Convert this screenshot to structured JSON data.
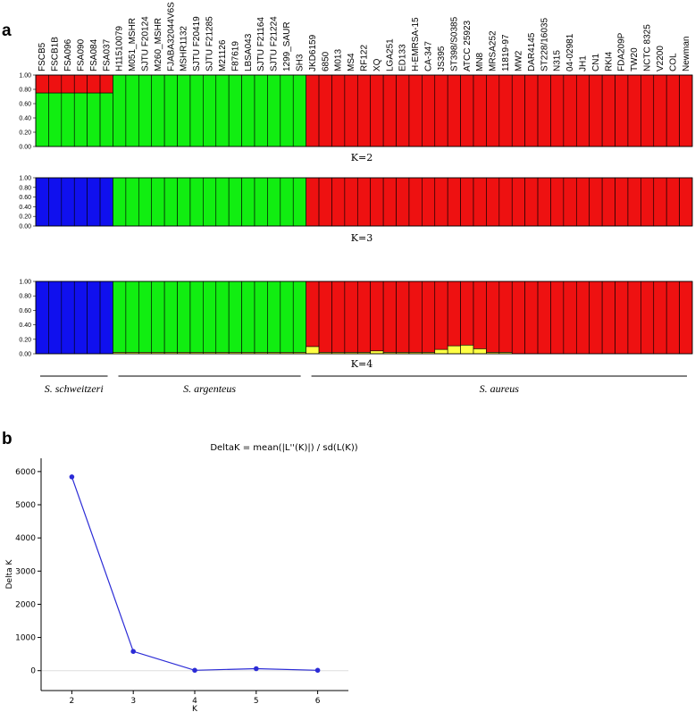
{
  "panel_a_label": "a",
  "panel_b_label": "b",
  "samples": [
    "FSCB5",
    "FSCB1B",
    "FSA096",
    "FSA090",
    "FSA084",
    "FSA037",
    "H11510079",
    "M051_MSHR",
    "SJTU F20124",
    "M260_MSHR",
    "FJABA32044V6S",
    "MSHR1132",
    "SJTU F20419",
    "SJTU F21285",
    "M21126",
    "F87619",
    "LBSA043",
    "SJTU F21164",
    "SJTU F21224",
    "1299_SAUR",
    "SH3",
    "JKD6159",
    "6850",
    "M013",
    "MS4",
    "RF122",
    "XQ",
    "LGA251",
    "ED133",
    "H-EMRSA-15",
    "CA-347",
    "JS395",
    "ST398/S0385",
    "ATCC 25923",
    "MN8",
    "MRSA252",
    "11819-97",
    "MW2",
    "DAR4145",
    "ST228/16035",
    "N315",
    "04-02981",
    "JH1",
    "CN1",
    "RKI4",
    "FDA209P",
    "TW20",
    "NCTC 8325",
    "V2200",
    "COL",
    "Newman"
  ],
  "structure": {
    "colors": {
      "blue": "#1010ee",
      "green": "#11ee11",
      "red": "#ee1111",
      "yellow": "#ffff44"
    },
    "y_ticks": [
      "0.00",
      "0.20",
      "0.40",
      "0.60",
      "0.80",
      "1.00"
    ],
    "panels": [
      {
        "k_label": "K=2",
        "groups": [
          {
            "count": 6,
            "stack": [
              [
                "green",
                0.75
              ],
              [
                "red",
                0.25
              ]
            ]
          },
          {
            "count": 15,
            "stack": [
              [
                "green",
                1.0
              ]
            ]
          },
          {
            "count": 30,
            "stack": [
              [
                "red",
                1.0
              ]
            ]
          }
        ]
      },
      {
        "k_label": "K=3",
        "groups": [
          {
            "count": 6,
            "stack": [
              [
                "blue",
                1.0
              ]
            ]
          },
          {
            "count": 15,
            "stack": [
              [
                "green",
                1.0
              ]
            ]
          },
          {
            "count": 30,
            "stack": [
              [
                "red",
                1.0
              ]
            ]
          }
        ]
      },
      {
        "k_label": "K=4",
        "groups": [
          {
            "count": 6,
            "stack": [
              [
                "blue",
                1.0
              ]
            ]
          },
          {
            "count": 15,
            "stack": [
              [
                "yellow",
                0.02
              ],
              [
                "green",
                0.98
              ]
            ]
          },
          {
            "count": 30,
            "stack": [
              [
                "red",
                1.0
              ]
            ]
          }
        ],
        "yellow_in_red": [
          0.1,
          0.02,
          0.02,
          0.02,
          0.02,
          0.04,
          0.02,
          0.02,
          0.02,
          0.02,
          0.06,
          0.11,
          0.12,
          0.07,
          0.02,
          0.02,
          0,
          0,
          0,
          0,
          0,
          0,
          0,
          0,
          0,
          0,
          0,
          0,
          0,
          0
        ]
      }
    ],
    "species": [
      {
        "name": "S. schweitzeri",
        "count": 6
      },
      {
        "name": "S. argenteus",
        "count": 15
      },
      {
        "name": "S. aureus",
        "count": 30
      }
    ]
  },
  "chart_data": {
    "type": "line",
    "title": "DeltaK = mean(|L''(K)|) / sd(L(K))",
    "xlabel": "K",
    "ylabel": "Delta K",
    "x": [
      2,
      3,
      4,
      5,
      6
    ],
    "values": [
      5840,
      580,
      10,
      60,
      10
    ],
    "xlim": [
      1.5,
      6.5
    ],
    "ylim": [
      -600,
      6400
    ],
    "y_ticks": [
      0,
      1000,
      2000,
      3000,
      4000,
      5000,
      6000
    ],
    "x_ticks": [
      2,
      3,
      4,
      5,
      6
    ],
    "color": "#2b2bd6"
  }
}
